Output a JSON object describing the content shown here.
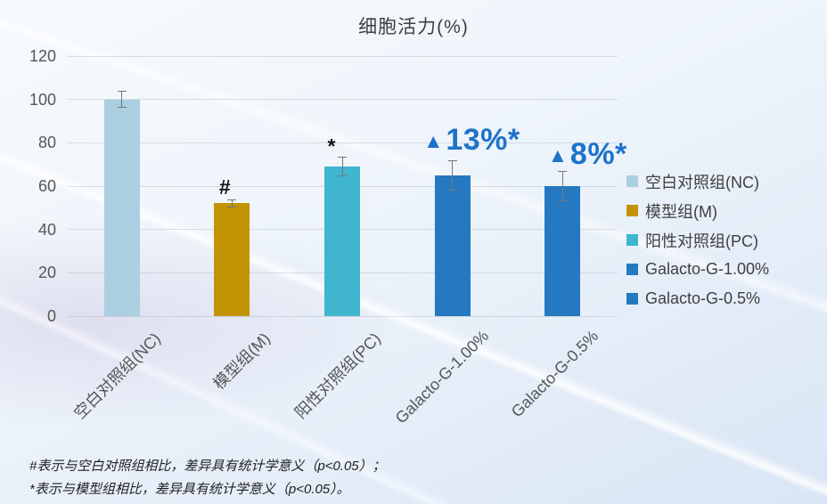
{
  "chart_data": {
    "type": "bar",
    "title": "细胞活力(%)",
    "categories": [
      "空白对照组(NC)",
      "模型组(M)",
      "阳性对照组(PC)",
      "Galacto-G-1.00%",
      "Galacto-G-0.5%"
    ],
    "values": [
      100,
      52,
      69,
      65,
      60
    ],
    "error_bars": [
      4,
      2,
      4.5,
      7,
      7
    ],
    "bar_colors": [
      "#aacfe0",
      "#c29403",
      "#3fb5ce",
      "#2579c1",
      "#2579c1"
    ],
    "point_annotations": [
      "",
      "#",
      "*",
      "▲13%*",
      "▲8%*"
    ],
    "annotation_color": "#1e73c9",
    "ylim": [
      0,
      120
    ],
    "yticks": [
      0,
      20,
      40,
      60,
      80,
      100,
      120
    ],
    "grid": true,
    "legend_position": "right",
    "legend": [
      {
        "label": "空白对照组(NC)",
        "color": "#aacfe0"
      },
      {
        "label": "模型组(M)",
        "color": "#c29403"
      },
      {
        "label": "阳性对照组(PC)",
        "color": "#3fb5ce"
      },
      {
        "label": "Galacto-G-1.00%",
        "color": "#2579c1"
      },
      {
        "label": "Galacto-G-0.5%",
        "color": "#2579c1"
      }
    ]
  },
  "footnotes": [
    "#表示与空白对照组相比，差异具有统计学意义（p<0.05）；",
    "*表示与模型组相比，差异具有统计学意义（p<0.05）。"
  ]
}
